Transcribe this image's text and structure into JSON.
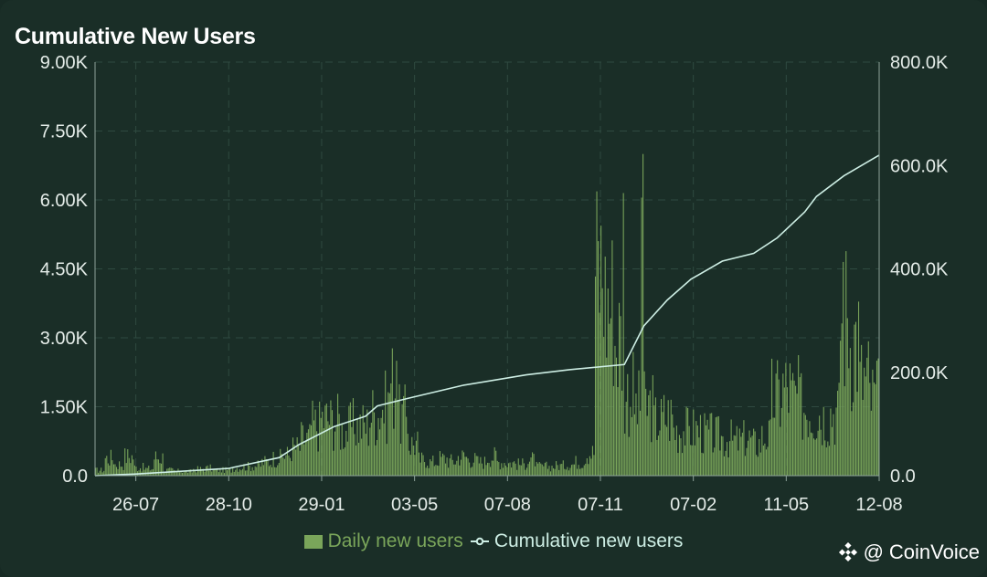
{
  "title": "Cumulative New Users",
  "watermark": {
    "at": "@",
    "brand": "CoinVoice"
  },
  "colors": {
    "bars": "#7aa55a",
    "line": "#cdeee4",
    "grid": "#2f4a40",
    "axis": "#8da39a",
    "tick_text": "#e4ece8",
    "legend_bar_text": "#7aa55a",
    "legend_line_text": "#cdeee4"
  },
  "chart_data": {
    "type": "bar+line",
    "title": "Cumulative New Users",
    "x_ticks": [
      "26-07",
      "28-10",
      "29-01",
      "03-05",
      "07-08",
      "07-11",
      "07-02",
      "11-05",
      "12-08"
    ],
    "y_left": {
      "ticks": [
        "0.0",
        "1.50K",
        "3.00K",
        "4.50K",
        "6.00K",
        "7.50K",
        "9.00K"
      ],
      "min": 0,
      "max": 9000
    },
    "y_right": {
      "ticks": [
        "0.0",
        "200.0K",
        "400.0K",
        "600.0K",
        "800.0K"
      ],
      "min": 0,
      "max": 800000
    },
    "series": [
      {
        "name": "Daily new users",
        "axis": "left",
        "kind": "bar",
        "daily_approx_weekly_avg": [
          120,
          380,
          250,
          420,
          180,
          150,
          400,
          120,
          100,
          90,
          140,
          160,
          120,
          120,
          180,
          200,
          220,
          300,
          380,
          450,
          600,
          800,
          1100,
          1250,
          1200,
          1000,
          1100,
          1100,
          1350,
          1500,
          2000,
          1300,
          700,
          350,
          300,
          380,
          320,
          420,
          350,
          300,
          420,
          300,
          280,
          250,
          350,
          200,
          200,
          220,
          250,
          300,
          500,
          4500,
          3800,
          3000,
          1800,
          1500,
          1500,
          1200,
          1300,
          1000,
          1000,
          1000,
          900,
          850,
          800,
          750,
          800,
          700,
          850,
          1700,
          1900,
          1700,
          1500,
          1400,
          1300,
          1400,
          3500,
          3000,
          2100,
          1700
        ],
        "notable_peaks": [
          {
            "label": "first spike after 07-11",
            "value": 6150
          },
          {
            "label": "max spike after 07-11",
            "value": 7000
          },
          {
            "label": "second spike after 07-11",
            "value": 6050
          },
          {
            "label": "peak after 11-05",
            "value": 4650
          },
          {
            "label": "peak before 03-05",
            "value": 2500
          }
        ]
      },
      {
        "name": "Cumulative new users",
        "axis": "right",
        "kind": "line",
        "x_position_fraction": [
          0.0,
          0.05,
          0.17,
          0.235,
          0.26,
          0.305,
          0.345,
          0.36,
          0.4,
          0.47,
          0.55,
          0.605,
          0.675,
          0.7,
          0.73,
          0.76,
          0.8,
          0.84,
          0.87,
          0.905,
          0.92,
          0.955,
          1.0
        ],
        "values": [
          0,
          3000,
          14000,
          35000,
          60000,
          95000,
          115000,
          135000,
          150000,
          175000,
          195000,
          205000,
          215000,
          290000,
          340000,
          380000,
          415000,
          430000,
          460000,
          510000,
          540000,
          580000,
          620000
        ]
      }
    ],
    "legend": [
      {
        "label": "Daily new users",
        "kind": "bar"
      },
      {
        "label": "Cumulative new users",
        "kind": "line"
      }
    ],
    "legend_position": "bottom-center",
    "grid": true
  }
}
